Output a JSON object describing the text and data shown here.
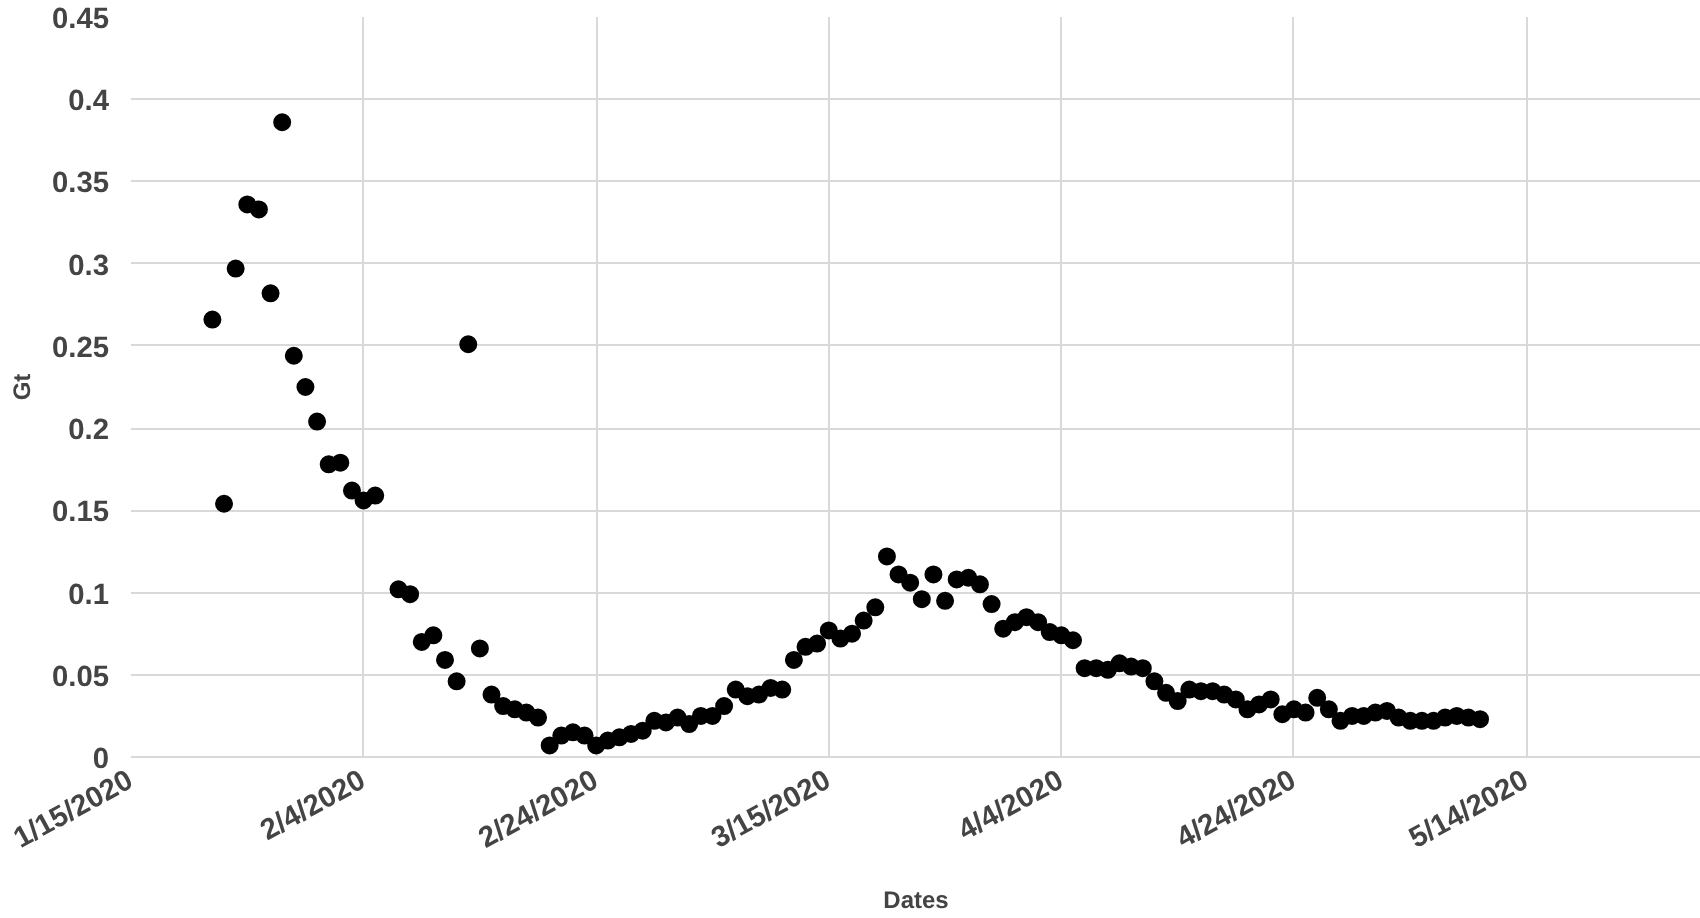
{
  "chart_data": {
    "type": "scatter",
    "xlabel": "Dates",
    "ylabel": "Gt",
    "marker": "circle",
    "grid": true,
    "series": [
      {
        "color": "#000000",
        "x": [
          "2020-01-22",
          "2020-01-23",
          "2020-01-24",
          "2020-01-25",
          "2020-01-26",
          "2020-01-27",
          "2020-01-28",
          "2020-01-29",
          "2020-01-30",
          "2020-01-31",
          "2020-02-01",
          "2020-02-02",
          "2020-02-03",
          "2020-02-04",
          "2020-02-05",
          "2020-02-07",
          "2020-02-08",
          "2020-02-09",
          "2020-02-10",
          "2020-02-11",
          "2020-02-12",
          "2020-02-13",
          "2020-02-14",
          "2020-02-15",
          "2020-02-16",
          "2020-02-17",
          "2020-02-18",
          "2020-02-19",
          "2020-02-20",
          "2020-02-21",
          "2020-02-22",
          "2020-02-23",
          "2020-02-24",
          "2020-02-25",
          "2020-02-26",
          "2020-02-27",
          "2020-02-28",
          "2020-02-29",
          "2020-03-01",
          "2020-03-02",
          "2020-03-03",
          "2020-03-04",
          "2020-03-05",
          "2020-03-06",
          "2020-03-07",
          "2020-03-08",
          "2020-03-09",
          "2020-03-10",
          "2020-03-11",
          "2020-03-12",
          "2020-03-13",
          "2020-03-14",
          "2020-03-15",
          "2020-03-16",
          "2020-03-17",
          "2020-03-18",
          "2020-03-19",
          "2020-03-20",
          "2020-03-21",
          "2020-03-22",
          "2020-03-23",
          "2020-03-24",
          "2020-03-25",
          "2020-03-26",
          "2020-03-27",
          "2020-03-28",
          "2020-03-29",
          "2020-03-30",
          "2020-03-31",
          "2020-04-01",
          "2020-04-02",
          "2020-04-03",
          "2020-04-04",
          "2020-04-05",
          "2020-04-06",
          "2020-04-07",
          "2020-04-08",
          "2020-04-09",
          "2020-04-10",
          "2020-04-11",
          "2020-04-12",
          "2020-04-13",
          "2020-04-14",
          "2020-04-15",
          "2020-04-16",
          "2020-04-17",
          "2020-04-18",
          "2020-04-19",
          "2020-04-20",
          "2020-04-21",
          "2020-04-22",
          "2020-04-23",
          "2020-04-24",
          "2020-04-25",
          "2020-04-26",
          "2020-04-27",
          "2020-04-28",
          "2020-04-29",
          "2020-04-30",
          "2020-05-01",
          "2020-05-02",
          "2020-05-03",
          "2020-05-04",
          "2020-05-05",
          "2020-05-06",
          "2020-05-07",
          "2020-05-08",
          "2020-05-09",
          "2020-05-10"
        ],
        "values": [
          0.266,
          0.154,
          0.297,
          0.336,
          0.333,
          0.282,
          0.386,
          0.244,
          0.225,
          0.204,
          0.178,
          0.179,
          0.162,
          0.156,
          0.159,
          0.102,
          0.099,
          0.07,
          0.074,
          0.059,
          0.046,
          0.251,
          0.066,
          0.038,
          0.031,
          0.029,
          0.027,
          0.024,
          0.007,
          0.013,
          0.015,
          0.013,
          0.007,
          0.01,
          0.012,
          0.014,
          0.016,
          0.022,
          0.021,
          0.024,
          0.02,
          0.025,
          0.025,
          0.031,
          0.041,
          0.037,
          0.038,
          0.042,
          0.041,
          0.059,
          0.067,
          0.069,
          0.077,
          0.072,
          0.075,
          0.083,
          0.091,
          0.122,
          0.111,
          0.106,
          0.096,
          0.111,
          0.095,
          0.108,
          0.109,
          0.105,
          0.093,
          0.078,
          0.082,
          0.085,
          0.082,
          0.076,
          0.074,
          0.071,
          0.054,
          0.054,
          0.053,
          0.057,
          0.055,
          0.054,
          0.046,
          0.039,
          0.034,
          0.041,
          0.04,
          0.04,
          0.038,
          0.035,
          0.029,
          0.032,
          0.035,
          0.026,
          0.029,
          0.027,
          0.036,
          0.029,
          0.022,
          0.025,
          0.025,
          0.027,
          0.028,
          0.024,
          0.022,
          0.022,
          0.022,
          0.024,
          0.025,
          0.024,
          0.023
        ]
      }
    ],
    "xlim": [
      "2020-01-15",
      "2020-05-29"
    ],
    "xticks": [
      {
        "value": "2020-01-15",
        "label": "1/15/2020"
      },
      {
        "value": "2020-02-04",
        "label": "2/4/2020"
      },
      {
        "value": "2020-02-24",
        "label": "2/24/2020"
      },
      {
        "value": "2020-03-15",
        "label": "3/15/2020"
      },
      {
        "value": "2020-04-04",
        "label": "4/4/2020"
      },
      {
        "value": "2020-04-24",
        "label": "4/24/2020"
      },
      {
        "value": "2020-05-14",
        "label": "5/14/2020"
      }
    ],
    "ylim": [
      0,
      0.45
    ],
    "yticks": [
      0,
      0.05,
      0.1,
      0.15,
      0.2,
      0.25,
      0.3,
      0.35,
      0.4,
      0.45
    ]
  }
}
